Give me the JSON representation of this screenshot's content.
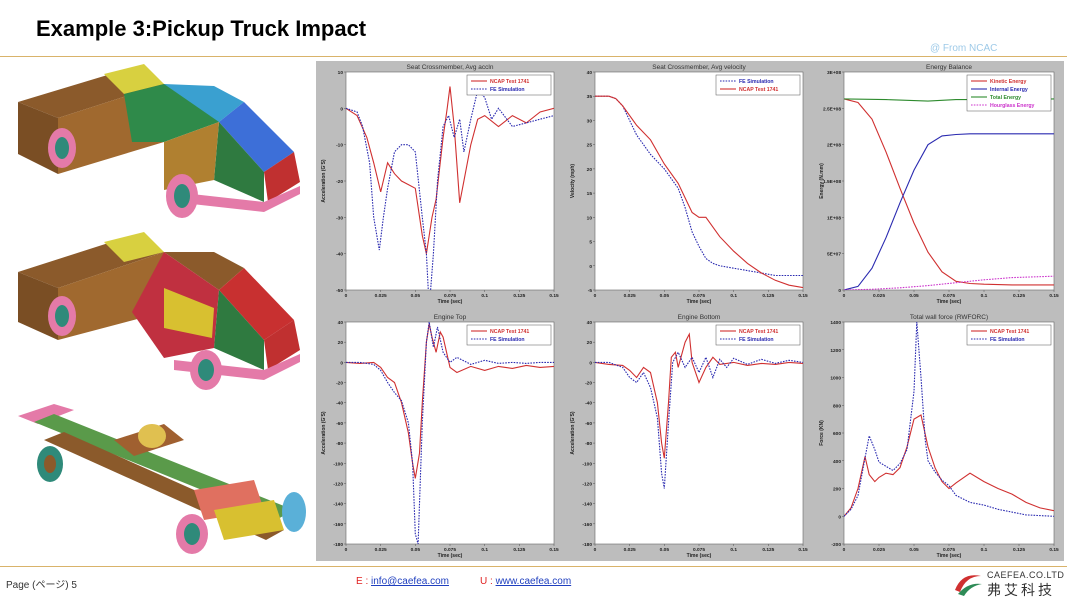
{
  "header": {
    "title": "Example 3:Pickup Truck Impact",
    "source": "@ From NCAC"
  },
  "footer": {
    "page": "Page (ページ) 5",
    "email_label": "E :",
    "email": "info@caefea.com",
    "url_label": "U :",
    "url": "www.caefea.com",
    "company_en": "CAEFEA.CO.LTD",
    "company_cn": "弗艾科技"
  },
  "colors": {
    "ncap": "#d03030",
    "fe": "#2a2ab0",
    "total": "#2e8b2e",
    "hourglass": "#cc33cc"
  },
  "chart_data": [
    {
      "type": "line",
      "title": "Seat Crossmember, Avg accln",
      "xlabel": "Time (sec)",
      "ylabel": "Acceleration (G'S)",
      "xlim": [
        0,
        0.15
      ],
      "ylim": [
        -50,
        10
      ],
      "xticks": [
        "0",
        "0.025",
        "0.05",
        "0.075",
        "0.1",
        "0.125",
        "0.15"
      ],
      "yticks": [
        "10",
        "0",
        "-10",
        "-20",
        "-30",
        "-40",
        "-50"
      ],
      "legend": "top-right",
      "series": [
        {
          "name": "NCAP Test 1741",
          "color": "ncap",
          "dash": false,
          "x": [
            0,
            0.008,
            0.015,
            0.02,
            0.025,
            0.03,
            0.035,
            0.04,
            0.045,
            0.05,
            0.055,
            0.058,
            0.062,
            0.065,
            0.07,
            0.073,
            0.075,
            0.078,
            0.082,
            0.085,
            0.09,
            0.095,
            0.1,
            0.11,
            0.12,
            0.13,
            0.14,
            0.15
          ],
          "y": [
            0,
            -2,
            -8,
            -15,
            -23,
            -15,
            -18,
            -20,
            -21,
            -22,
            -35,
            -40,
            -30,
            -25,
            -8,
            0,
            6,
            -5,
            -26,
            -20,
            -10,
            -3,
            -2,
            -5,
            -2,
            -4,
            -1,
            0
          ]
        },
        {
          "name": "FE Simulation",
          "color": "fe",
          "dash": true,
          "x": [
            0,
            0.008,
            0.012,
            0.017,
            0.02,
            0.024,
            0.027,
            0.03,
            0.035,
            0.04,
            0.045,
            0.05,
            0.055,
            0.058,
            0.06,
            0.063,
            0.066,
            0.07,
            0.074,
            0.078,
            0.082,
            0.085,
            0.09,
            0.095,
            0.1,
            0.105,
            0.11,
            0.12,
            0.13,
            0.14,
            0.15
          ],
          "y": [
            0,
            -1,
            -5,
            -15,
            -30,
            -39,
            -30,
            -22,
            -12,
            -10,
            -10,
            -12,
            -30,
            -40,
            -55,
            -40,
            -20,
            -5,
            -2,
            -8,
            -3,
            -12,
            -3,
            5,
            3,
            -3,
            0,
            -5,
            -4,
            -3,
            -2
          ]
        }
      ]
    },
    {
      "type": "line",
      "title": "Seat Crossmember, Avg velocity",
      "xlabel": "Time (sec)",
      "ylabel": "Velocity (mph)",
      "xlim": [
        0,
        0.15
      ],
      "ylim": [
        -5,
        40
      ],
      "xticks": [
        "0",
        "0.025",
        "0.05",
        "0.075",
        "0.1",
        "0.125",
        "0.15"
      ],
      "yticks": [
        "40",
        "35",
        "30",
        "25",
        "20",
        "15",
        "10",
        "5",
        "0",
        "-5"
      ],
      "legend": "top-right",
      "series": [
        {
          "name": "FE Simulation",
          "color": "fe",
          "dash": true,
          "x": [
            0,
            0.01,
            0.015,
            0.02,
            0.03,
            0.04,
            0.05,
            0.06,
            0.065,
            0.07,
            0.075,
            0.08,
            0.085,
            0.09,
            0.1,
            0.11,
            0.12,
            0.13,
            0.14,
            0.15
          ],
          "y": [
            35,
            35,
            34.5,
            33,
            27,
            23,
            20,
            16,
            12,
            7,
            4,
            1.5,
            0.5,
            0,
            -0.5,
            -1,
            -1.5,
            -2,
            -2,
            -2
          ]
        },
        {
          "name": "NCAP Test 1741",
          "color": "ncap",
          "dash": false,
          "x": [
            0,
            0.01,
            0.015,
            0.02,
            0.03,
            0.04,
            0.05,
            0.06,
            0.07,
            0.075,
            0.08,
            0.09,
            0.1,
            0.11,
            0.12,
            0.13,
            0.14,
            0.15
          ],
          "y": [
            35,
            35,
            34.5,
            33,
            29,
            26,
            21,
            17,
            11,
            10,
            10,
            6,
            3,
            0.5,
            -1.5,
            -3,
            -4,
            -4.5
          ]
        }
      ]
    },
    {
      "type": "line",
      "title": "Energy Balance",
      "xlabel": "Time (sec)",
      "ylabel": "Energy (N.mm)",
      "xlim": [
        0,
        0.15
      ],
      "ylim": [
        0,
        300000000
      ],
      "xticks": [
        "0",
        "0.025",
        "0.05",
        "0.075",
        "0.1",
        "0.125",
        "0.15"
      ],
      "yticks": [
        "3E+08",
        "2.5E+08",
        "2E+08",
        "1.5E+08",
        "1E+08",
        "5E+07",
        "0"
      ],
      "legend": "top-right",
      "series": [
        {
          "name": "Kinetic Energy",
          "color": "ncap",
          "dash": false,
          "x": [
            0,
            0.01,
            0.02,
            0.03,
            0.04,
            0.05,
            0.06,
            0.07,
            0.08,
            0.09,
            0.1,
            0.12,
            0.15
          ],
          "y": [
            263000000,
            258000000,
            235000000,
            190000000,
            140000000,
            92000000,
            52000000,
            25000000,
            12000000,
            9000000,
            8000000,
            7000000,
            7000000
          ]
        },
        {
          "name": "Internal Energy",
          "color": "fe",
          "dash": false,
          "x": [
            0,
            0.01,
            0.02,
            0.03,
            0.04,
            0.05,
            0.06,
            0.07,
            0.08,
            0.09,
            0.1,
            0.12,
            0.15
          ],
          "y": [
            0,
            5000000,
            30000000,
            72000000,
            120000000,
            165000000,
            200000000,
            212000000,
            214000000,
            215000000,
            215000000,
            215000000,
            215000000
          ]
        },
        {
          "name": "Total Energy",
          "color": "total",
          "dash": false,
          "x": [
            0,
            0.03,
            0.06,
            0.08,
            0.1,
            0.12,
            0.15
          ],
          "y": [
            263000000,
            262000000,
            260000000,
            262000000,
            262000000,
            262000000,
            263000000
          ]
        },
        {
          "name": "Hourglass Energy",
          "color": "hourglass",
          "dash": true,
          "x": [
            0,
            0.02,
            0.04,
            0.06,
            0.08,
            0.1,
            0.12,
            0.15
          ],
          "y": [
            0,
            1000000,
            3000000,
            6000000,
            10000000,
            14000000,
            17000000,
            19000000
          ]
        }
      ]
    },
    {
      "type": "line",
      "title": "Engine Top",
      "xlabel": "Time (sec)",
      "ylabel": "Acceleration (G'S)",
      "xlim": [
        0,
        0.15
      ],
      "ylim": [
        -180,
        40
      ],
      "xticks": [
        "0",
        "0.025",
        "0.05",
        "0.075",
        "0.1",
        "0.125",
        "0.15"
      ],
      "yticks": [
        "40",
        "20",
        "0",
        "-20",
        "-40",
        "-60",
        "-80",
        "-100",
        "-120",
        "-140",
        "-160",
        "-180"
      ],
      "legend": "top-right",
      "series": [
        {
          "name": "NCAP Test 1741",
          "color": "ncap",
          "dash": false,
          "x": [
            0,
            0.01,
            0.02,
            0.025,
            0.03,
            0.035,
            0.04,
            0.045,
            0.048,
            0.05,
            0.053,
            0.055,
            0.058,
            0.06,
            0.062,
            0.065,
            0.068,
            0.07,
            0.075,
            0.08,
            0.09,
            0.1,
            0.11,
            0.12,
            0.13,
            0.14,
            0.15
          ],
          "y": [
            0,
            -1,
            0,
            -5,
            -15,
            -20,
            -40,
            -70,
            -100,
            -115,
            -90,
            -40,
            20,
            38,
            25,
            10,
            30,
            25,
            -5,
            -10,
            -4,
            -8,
            -4,
            -6,
            -3,
            -5,
            -4
          ]
        },
        {
          "name": "FE Simulation",
          "color": "fe",
          "dash": true,
          "x": [
            0,
            0.01,
            0.02,
            0.025,
            0.03,
            0.035,
            0.04,
            0.045,
            0.048,
            0.05,
            0.052,
            0.055,
            0.058,
            0.06,
            0.063,
            0.066,
            0.07,
            0.075,
            0.08,
            0.09,
            0.1,
            0.11,
            0.12,
            0.13,
            0.14,
            0.15
          ],
          "y": [
            0,
            0,
            -2,
            -8,
            -20,
            -30,
            -38,
            -60,
            -100,
            -170,
            -180,
            -60,
            20,
            40,
            15,
            35,
            10,
            0,
            5,
            -2,
            2,
            -1,
            0,
            -1,
            0,
            0
          ]
        }
      ]
    },
    {
      "type": "line",
      "title": "Engine Bottom",
      "xlabel": "Time (sec)",
      "ylabel": "Acceleration (G'S)",
      "xlim": [
        0,
        0.15
      ],
      "ylim": [
        -180,
        40
      ],
      "xticks": [
        "0",
        "0.025",
        "0.05",
        "0.075",
        "0.1",
        "0.125",
        "0.15"
      ],
      "yticks": [
        "40",
        "20",
        "0",
        "-20",
        "-40",
        "-60",
        "-80",
        "-100",
        "-120",
        "-140",
        "-160",
        "-180"
      ],
      "legend": "top-right",
      "series": [
        {
          "name": "NCAP Test 1741",
          "color": "ncap",
          "dash": false,
          "x": [
            0,
            0.01,
            0.02,
            0.025,
            0.03,
            0.035,
            0.04,
            0.045,
            0.048,
            0.05,
            0.053,
            0.055,
            0.058,
            0.06,
            0.065,
            0.068,
            0.07,
            0.075,
            0.08,
            0.085,
            0.09,
            0.1,
            0.11,
            0.12,
            0.13,
            0.14,
            0.15
          ],
          "y": [
            0,
            -2,
            -3,
            -8,
            -15,
            -5,
            -10,
            -40,
            -80,
            -95,
            -40,
            5,
            10,
            -5,
            20,
            28,
            0,
            -20,
            -5,
            5,
            -2,
            0,
            -3,
            -1,
            -2,
            0,
            -1
          ]
        },
        {
          "name": "FE Simulation",
          "color": "fe",
          "dash": true,
          "x": [
            0,
            0.01,
            0.02,
            0.025,
            0.03,
            0.035,
            0.04,
            0.045,
            0.048,
            0.05,
            0.053,
            0.056,
            0.06,
            0.065,
            0.07,
            0.075,
            0.08,
            0.085,
            0.09,
            0.095,
            0.1,
            0.11,
            0.12,
            0.13,
            0.14,
            0.15
          ],
          "y": [
            0,
            0,
            -5,
            -15,
            -20,
            -10,
            -25,
            -55,
            -110,
            -125,
            -60,
            0,
            10,
            -5,
            5,
            -10,
            5,
            -15,
            3,
            -5,
            4,
            -2,
            3,
            -1,
            2,
            0
          ]
        }
      ]
    },
    {
      "type": "line",
      "title": "Total wall force (RWFORC)",
      "xlabel": "Time (sec)",
      "ylabel": "Force (KN)",
      "xlim": [
        0,
        0.15
      ],
      "ylim": [
        -200,
        1400
      ],
      "xticks": [
        "0",
        "0.025",
        "0.05",
        "0.075",
        "0.1",
        "0.125",
        "0.15"
      ],
      "yticks": [
        "1400",
        "1200",
        "1000",
        "800",
        "600",
        "400",
        "200",
        "0",
        "-200"
      ],
      "legend": "top-right",
      "series": [
        {
          "name": "NCAP Test 1741",
          "color": "ncap",
          "dash": false,
          "x": [
            0,
            0.005,
            0.01,
            0.015,
            0.018,
            0.022,
            0.025,
            0.03,
            0.035,
            0.04,
            0.045,
            0.05,
            0.055,
            0.06,
            0.065,
            0.07,
            0.075,
            0.08,
            0.09,
            0.1,
            0.11,
            0.12,
            0.13,
            0.14,
            0.15
          ],
          "y": [
            0,
            60,
            200,
            430,
            300,
            250,
            280,
            310,
            300,
            350,
            500,
            700,
            730,
            500,
            350,
            250,
            200,
            240,
            310,
            250,
            200,
            160,
            100,
            60,
            40
          ]
        },
        {
          "name": "FE Simulation",
          "color": "fe",
          "dash": true,
          "x": [
            0,
            0.005,
            0.01,
            0.015,
            0.018,
            0.022,
            0.025,
            0.03,
            0.035,
            0.04,
            0.045,
            0.05,
            0.052,
            0.055,
            0.058,
            0.06,
            0.065,
            0.07,
            0.075,
            0.08,
            0.09,
            0.1,
            0.11,
            0.12,
            0.13,
            0.14,
            0.15
          ],
          "y": [
            0,
            50,
            150,
            420,
            580,
            480,
            390,
            360,
            330,
            380,
            480,
            900,
            1400,
            1000,
            550,
            400,
            320,
            260,
            220,
            150,
            100,
            80,
            50,
            30,
            10,
            5,
            0
          ]
        }
      ]
    }
  ]
}
